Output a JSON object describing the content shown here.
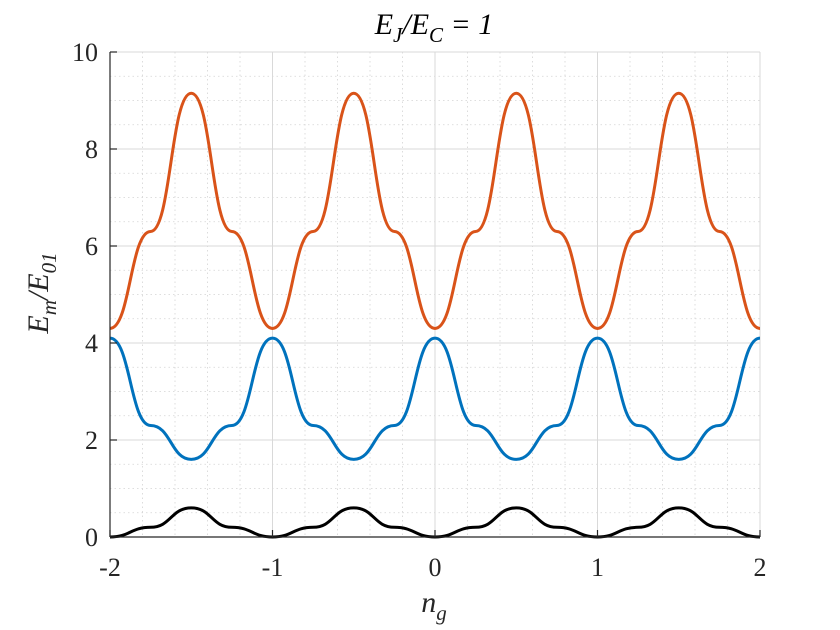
{
  "chart_data": {
    "type": "line",
    "title": {
      "main": "E",
      "sub1": "J",
      "mid": "/E",
      "sub2": "C",
      "tail": " = 1"
    },
    "xlabel": {
      "main": "n",
      "sub": "g"
    },
    "ylabel": {
      "main": "E",
      "sub1": "m",
      "mid": "/E",
      "sub2": "01"
    },
    "xlim": [
      -2,
      2
    ],
    "ylim": [
      0,
      10
    ],
    "xticks": [
      -2,
      -1,
      0,
      1,
      2
    ],
    "xtick_labels": [
      "-2",
      "-1",
      "0",
      "1",
      "2"
    ],
    "yticks": [
      0,
      2,
      4,
      6,
      8,
      10
    ],
    "ytick_labels": [
      "0",
      "2",
      "4",
      "6",
      "8",
      "10"
    ],
    "grid": true,
    "minor_grid": true,
    "series": [
      {
        "color": "#000000",
        "x": [
          -2.0,
          -1.75,
          -1.5,
          -1.25,
          -1.0,
          -0.75,
          -0.5,
          -0.25,
          0.0,
          0.25,
          0.5,
          0.75,
          1.0,
          1.25,
          1.5,
          1.75,
          2.0
        ],
        "y": [
          0.0,
          0.2,
          0.6,
          0.2,
          0.0,
          0.2,
          0.6,
          0.2,
          0.0,
          0.2,
          0.6,
          0.2,
          0.0,
          0.2,
          0.6,
          0.2,
          0.0
        ]
      },
      {
        "color": "#0072BD",
        "x": [
          -2.0,
          -1.75,
          -1.5,
          -1.25,
          -1.0,
          -0.75,
          -0.5,
          -0.25,
          0.0,
          0.25,
          0.5,
          0.75,
          1.0,
          1.25,
          1.5,
          1.75,
          2.0
        ],
        "y": [
          4.1,
          2.3,
          1.6,
          2.3,
          4.1,
          2.3,
          1.6,
          2.3,
          4.1,
          2.3,
          1.6,
          2.3,
          4.1,
          2.3,
          1.6,
          2.3,
          4.1
        ]
      },
      {
        "color": "#D95319",
        "x": [
          -2.0,
          -1.75,
          -1.5,
          -1.25,
          -1.0,
          -0.75,
          -0.5,
          -0.25,
          0.0,
          0.25,
          0.5,
          0.75,
          1.0,
          1.25,
          1.5,
          1.75,
          2.0
        ],
        "y": [
          4.3,
          6.3,
          9.15,
          6.3,
          4.3,
          6.3,
          9.15,
          6.3,
          4.3,
          6.3,
          9.15,
          6.3,
          4.3,
          6.3,
          9.15,
          6.3,
          4.3
        ]
      }
    ]
  }
}
